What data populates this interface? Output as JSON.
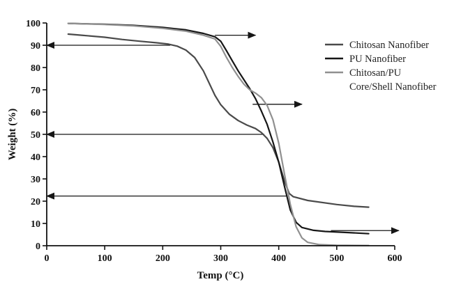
{
  "chart_data": {
    "type": "line",
    "xlabel": "Temp (°C)",
    "ylabel": "Weight (%)",
    "xlim": [
      0,
      600
    ],
    "ylim": [
      0,
      100
    ],
    "xticks": [
      0,
      100,
      200,
      300,
      400,
      500,
      600
    ],
    "yticks": [
      0,
      10,
      20,
      30,
      40,
      50,
      60,
      70,
      80,
      90,
      100
    ],
    "grid": false,
    "legend_position": "right",
    "series": [
      {
        "name": "Chitosan Nanofiber",
        "color": "#4a4a4a",
        "points": [
          [
            37,
            95.0
          ],
          [
            60,
            94.5
          ],
          [
            100,
            93.6
          ],
          [
            130,
            92.6
          ],
          [
            160,
            91.8
          ],
          [
            190,
            91.1
          ],
          [
            210,
            90.5
          ],
          [
            225,
            89.6
          ],
          [
            240,
            87.8
          ],
          [
            255,
            84.5
          ],
          [
            270,
            78.5
          ],
          [
            280,
            73.0
          ],
          [
            290,
            67.5
          ],
          [
            300,
            63.3
          ],
          [
            315,
            59.0
          ],
          [
            330,
            56.2
          ],
          [
            345,
            54.2
          ],
          [
            360,
            52.6
          ],
          [
            370,
            50.8
          ],
          [
            380,
            48.2
          ],
          [
            390,
            44.0
          ],
          [
            400,
            37.5
          ],
          [
            410,
            29.0
          ],
          [
            418,
            23.5
          ],
          [
            425,
            22.0
          ],
          [
            450,
            20.3
          ],
          [
            500,
            18.5
          ],
          [
            530,
            17.7
          ],
          [
            555,
            17.3
          ]
        ]
      },
      {
        "name": "PU Nanofiber",
        "color": "#161616",
        "points": [
          [
            37,
            99.8
          ],
          [
            100,
            99.4
          ],
          [
            150,
            98.9
          ],
          [
            200,
            98.0
          ],
          [
            240,
            96.9
          ],
          [
            270,
            95.3
          ],
          [
            290,
            93.8
          ],
          [
            300,
            91.8
          ],
          [
            310,
            87.5
          ],
          [
            320,
            83.0
          ],
          [
            330,
            78.5
          ],
          [
            340,
            74.5
          ],
          [
            350,
            70.5
          ],
          [
            360,
            66.0
          ],
          [
            370,
            60.5
          ],
          [
            380,
            54.5
          ],
          [
            390,
            46.5
          ],
          [
            400,
            37.5
          ],
          [
            410,
            26.5
          ],
          [
            420,
            16.0
          ],
          [
            430,
            10.5
          ],
          [
            440,
            8.2
          ],
          [
            460,
            6.9
          ],
          [
            480,
            6.4
          ],
          [
            520,
            5.9
          ],
          [
            555,
            5.4
          ]
        ]
      },
      {
        "name": "Chitosan/PU Core/Shell Nanofiber",
        "color": "#909090",
        "points": [
          [
            37,
            99.8
          ],
          [
            100,
            99.3
          ],
          [
            150,
            98.7
          ],
          [
            200,
            97.6
          ],
          [
            240,
            96.3
          ],
          [
            270,
            94.5
          ],
          [
            290,
            92.8
          ],
          [
            300,
            89.5
          ],
          [
            310,
            84.5
          ],
          [
            320,
            80.0
          ],
          [
            330,
            76.0
          ],
          [
            340,
            72.5
          ],
          [
            350,
            70.0
          ],
          [
            360,
            68.5
          ],
          [
            370,
            66.5
          ],
          [
            380,
            63.0
          ],
          [
            390,
            56.5
          ],
          [
            400,
            46.0
          ],
          [
            410,
            32.0
          ],
          [
            420,
            18.5
          ],
          [
            430,
            8.5
          ],
          [
            440,
            3.5
          ],
          [
            450,
            1.5
          ],
          [
            470,
            0.5
          ],
          [
            500,
            0.2
          ],
          [
            555,
            0.1
          ]
        ]
      }
    ],
    "annotations": [
      {
        "type": "arrow",
        "from": [
          213,
          90
        ],
        "to": [
          0,
          90
        ],
        "series": "Chitosan Nanofiber"
      },
      {
        "type": "arrow",
        "from": [
          375,
          50
        ],
        "to": [
          0,
          50
        ],
        "series": "Chitosan Nanofiber"
      },
      {
        "type": "arrow",
        "from": [
          415,
          22.3
        ],
        "to": [
          0,
          22.3
        ],
        "series": "Chitosan Nanofiber"
      },
      {
        "type": "arrow",
        "from": [
          290,
          94.5
        ],
        "to": [
          360,
          94.5
        ],
        "series": "PU Nanofiber"
      },
      {
        "type": "arrow",
        "from": [
          490,
          6.8
        ],
        "to": [
          607,
          6.8
        ],
        "series": "PU Nanofiber"
      },
      {
        "type": "arrow",
        "from": [
          355,
          63.5
        ],
        "to": [
          440,
          63.5
        ],
        "series": "Chitosan/PU Core/Shell Nanofiber"
      }
    ]
  }
}
